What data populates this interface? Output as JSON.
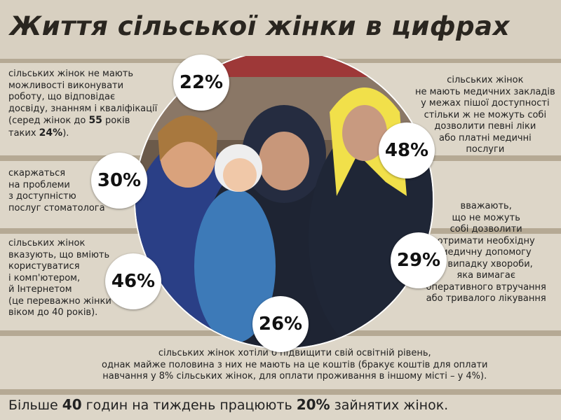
{
  "title": "Життя сільської жінки в цифрах",
  "stats": [
    {
      "percent": "22%",
      "lines": [
        [
          "сільських жінок не мають"
        ],
        [
          "можливості виконувати"
        ],
        [
          "роботу, що відповідає"
        ],
        [
          "досвіду, знанням і кваліфікації"
        ],
        [
          "(серед жінок до ",
          {
            "text": "55",
            "bold": true
          },
          " років"
        ],
        [
          "таких ",
          {
            "text": "24%",
            "bold": true
          },
          ")."
        ]
      ]
    },
    {
      "percent": "30%",
      "lines": [
        [
          "скаржаться"
        ],
        [
          "на проблеми"
        ],
        [
          "з доступністю"
        ],
        [
          "послуг стоматолога"
        ]
      ]
    },
    {
      "percent": "46%",
      "lines": [
        [
          "сільських жінок"
        ],
        [
          "вказують, що вміють"
        ],
        [
          "користуватися"
        ],
        [
          "і комп'ютером,"
        ],
        [
          "й Інтернетом"
        ],
        [
          "(це переважно жінки"
        ],
        [
          "віком до 40 років)."
        ]
      ]
    },
    {
      "percent": "26%",
      "lines": [
        [
          "сільських жінок хотіли б підвищити свій освітній рівень,"
        ],
        [
          "однак майже половина з них не мають на це коштів (бракує коштів для оплати"
        ],
        [
          "навчання у 8% сільських жінок, для оплати проживання в іншому місті – у 4%)."
        ]
      ]
    },
    {
      "percent": "48%",
      "lines": [
        [
          "сільських жінок"
        ],
        [
          "не мають медичних закладів"
        ],
        [
          "у межах пішої доступності"
        ],
        [
          "стільки ж не можуть собі"
        ],
        [
          "дозволити певні ліки"
        ],
        [
          "або платні медичні"
        ],
        [
          "послуги"
        ]
      ]
    },
    {
      "percent": "29%",
      "lines": [
        [
          "вважають,"
        ],
        [
          "що не можуть"
        ],
        [
          "собі дозволити"
        ],
        [
          "отримати необхідну"
        ],
        [
          "медичну допомогу"
        ],
        [
          "у випадку хвороби,"
        ],
        [
          "яка вимагає"
        ],
        [
          "оперативного втручання"
        ],
        [
          "або тривалого лікування"
        ]
      ]
    }
  ],
  "footer": [
    [
      "Більше ",
      {
        "text": "40",
        "bold": true
      },
      " годин на тиждень працюють ",
      {
        "text": "20%",
        "bold": true
      },
      " зайнятих жінок."
    ]
  ]
}
